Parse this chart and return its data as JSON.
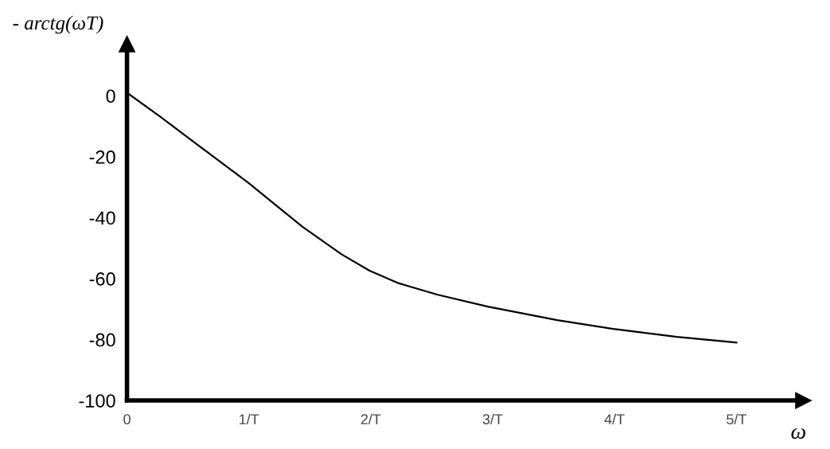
{
  "chart_data": {
    "type": "line",
    "ylabel": "- arctg(ωT)",
    "xlabel": "ω",
    "x": [
      0,
      0.26,
      0.59,
      1.0,
      1.44,
      1.76,
      1.99,
      2.22,
      2.55,
      2.96,
      3.53,
      3.99,
      4.51,
      5.0
    ],
    "series": [
      {
        "color": "#000000",
        "values": [
          1,
          -6.5,
          -16.4,
          -28.7,
          -43,
          -52,
          -57.4,
          -61.4,
          -65.3,
          -69.2,
          -73.6,
          -76.5,
          -79.1,
          -81
        ]
      }
    ],
    "xlim": [
      0,
      5.55
    ],
    "ylim": [
      -100,
      17
    ],
    "xticks": [
      0,
      {
        "value": 1,
        "label": "1/T"
      },
      {
        "value": 2,
        "label": "2/T"
      },
      {
        "value": 3,
        "label": "3/T"
      },
      {
        "value": 4,
        "label": "4/T"
      },
      {
        "value": 5,
        "label": "5/T"
      }
    ],
    "yticks": [
      0,
      -20,
      -40,
      -60,
      -80,
      -100
    ],
    "grid": false,
    "legend": false,
    "marker": "none",
    "line_style": "solid"
  }
}
